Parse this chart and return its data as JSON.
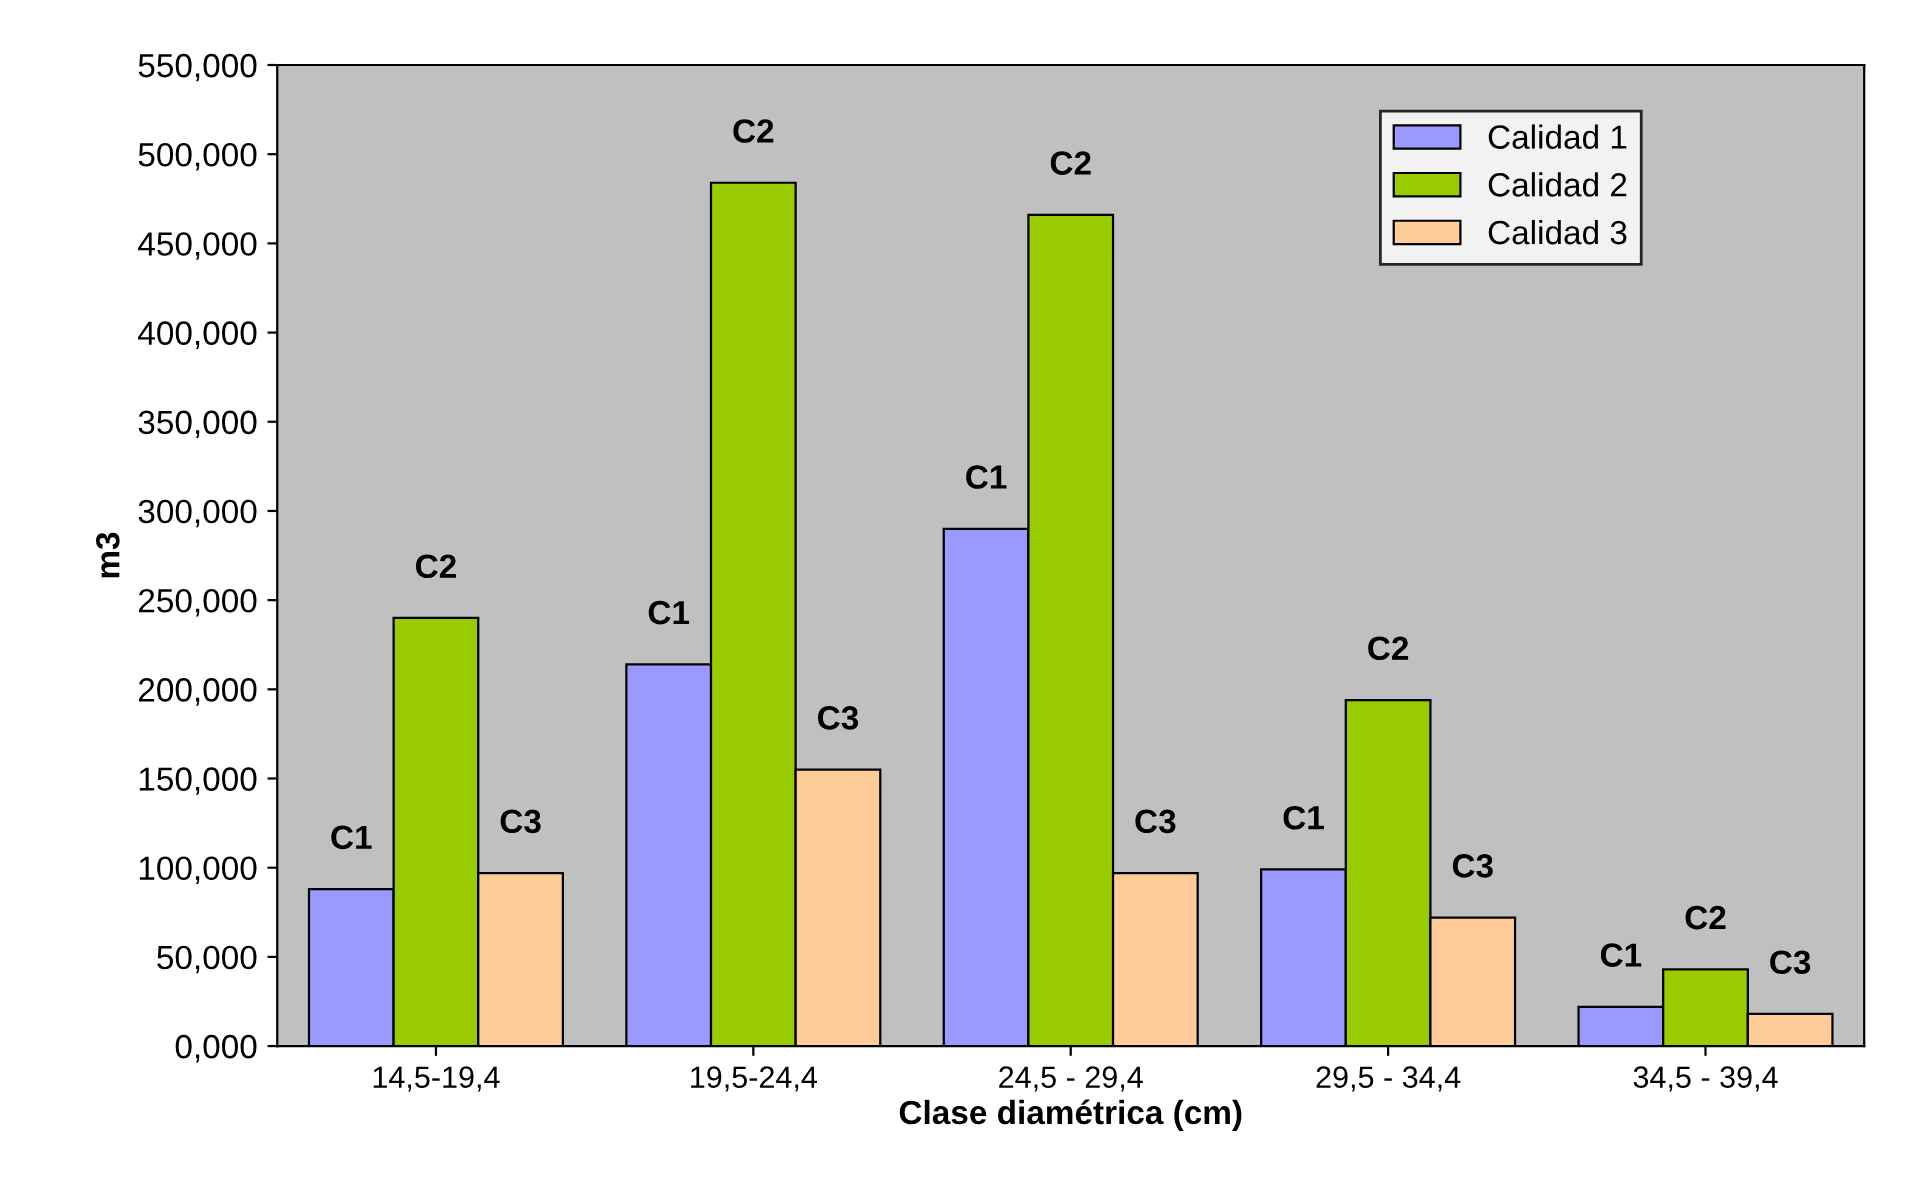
{
  "chart_data": {
    "type": "bar",
    "xlabel": "Clase diamétrica (cm)",
    "ylabel": "m3",
    "categories": [
      "14,5-19,4",
      "19,5-24,4",
      "24,5 - 29,4",
      "29,5 - 34,4",
      "34,5 - 39,4"
    ],
    "series": [
      {
        "name": "Calidad 1",
        "color": "#9999ff",
        "values": [
          88,
          214,
          290,
          99,
          22
        ],
        "value_labels": [
          "C1",
          "C1",
          "C1",
          "C1",
          "C1"
        ]
      },
      {
        "name": "Calidad 2",
        "color": "#99cc00",
        "values": [
          240,
          484,
          466,
          194,
          43
        ],
        "value_labels": [
          "C2",
          "C2",
          "C2",
          "C2",
          "C2"
        ]
      },
      {
        "name": "Calidad 3",
        "color": "#ffcc99",
        "values": [
          97,
          155,
          97,
          72,
          18
        ],
        "value_labels": [
          "C3",
          "C3",
          "C3",
          "C3",
          "C3"
        ]
      }
    ],
    "ylim": [
      0,
      550
    ],
    "yticks": [
      {
        "value": 0,
        "label": "0,000"
      },
      {
        "value": 50,
        "label": "50,000"
      },
      {
        "value": 100,
        "label": "100,000"
      },
      {
        "value": 150,
        "label": "150,000"
      },
      {
        "value": 200,
        "label": "200,000"
      },
      {
        "value": 250,
        "label": "250,000"
      },
      {
        "value": 300,
        "label": "300,000"
      },
      {
        "value": 350,
        "label": "350,000"
      },
      {
        "value": 400,
        "label": "400,000"
      },
      {
        "value": 450,
        "label": "450,000"
      },
      {
        "value": 500,
        "label": "500,000"
      },
      {
        "value": 550,
        "label": "550,000"
      }
    ],
    "grid": false,
    "legend": "top right"
  }
}
